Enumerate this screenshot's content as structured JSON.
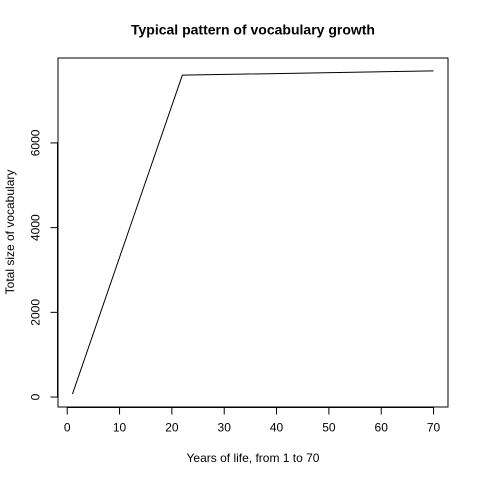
{
  "chart_data": {
    "type": "line",
    "title": "Typical pattern of vocabulary growth",
    "x_label": "Years of life, from 1 to 70",
    "y_label": "Total size of vocabulary",
    "x": [
      1,
      22,
      70
    ],
    "values": [
      70,
      7600,
      7700
    ],
    "color": "#000000",
    "xlim": [
      -1.76,
      72.76
    ],
    "ylim": [
      -235,
      8005
    ],
    "xticks": [
      0,
      10,
      20,
      30,
      40,
      50,
      60,
      70
    ],
    "yticks": [
      0,
      2000,
      4000,
      6000
    ]
  }
}
